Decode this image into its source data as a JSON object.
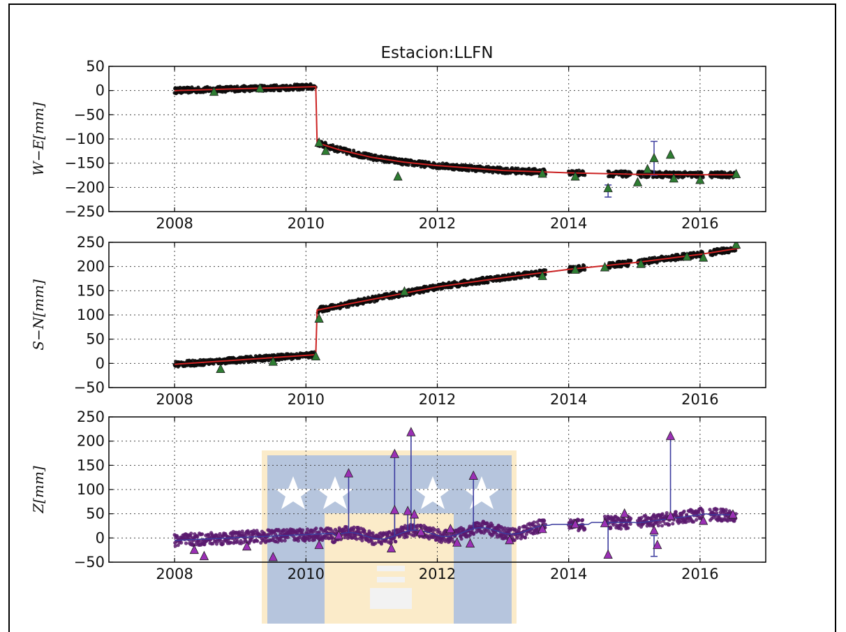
{
  "chart_data": {
    "type": "scatter",
    "title": "Estacion:LLFN",
    "xlim": [
      2007,
      2017
    ],
    "xticks": [
      "2008",
      "2010",
      "2012",
      "2014",
      "2016"
    ],
    "grid": true,
    "colors": {
      "obs": "#0a0a0a",
      "model": "#cc2222",
      "outlier_en": "#2e7d32",
      "outlier_z": "#9b30b5",
      "link": "#3b3b9e",
      "z_points": "#5a1a6e"
    },
    "panels": [
      {
        "id": "we",
        "ylabel": "W−E[mm]",
        "ylim": [
          -250,
          50
        ],
        "yticks": [
          "50",
          "0",
          "−50",
          "−100",
          "−150",
          "−200",
          "−250"
        ],
        "model": [
          [
            2008.0,
            0
          ],
          [
            2010.15,
            8
          ],
          [
            2010.17,
            -108
          ],
          [
            2010.5,
            -122
          ],
          [
            2011.0,
            -138
          ],
          [
            2011.5,
            -148
          ],
          [
            2012.0,
            -155
          ],
          [
            2012.5,
            -160
          ],
          [
            2013.0,
            -165
          ],
          [
            2013.6,
            -168
          ],
          [
            2014.0,
            -170
          ],
          [
            2015.0,
            -173
          ],
          [
            2016.0,
            -174
          ],
          [
            2016.55,
            -174
          ]
        ],
        "segments": [
          [
            2008.0,
            2010.15
          ],
          [
            2010.18,
            2013.65
          ],
          [
            2014.0,
            2014.25
          ],
          [
            2014.6,
            2014.95
          ],
          [
            2015.05,
            2016.05
          ],
          [
            2016.15,
            2016.55
          ]
        ],
        "outliers": [
          [
            2008.6,
            -3
          ],
          [
            2009.3,
            4
          ],
          [
            2010.2,
            -108
          ],
          [
            2010.3,
            -125
          ],
          [
            2011.4,
            -178
          ],
          [
            2013.6,
            -172
          ],
          [
            2014.1,
            -178
          ],
          [
            2014.6,
            -202
          ],
          [
            2015.05,
            -190
          ],
          [
            2015.2,
            -163
          ],
          [
            2015.3,
            -140
          ],
          [
            2015.55,
            -133
          ],
          [
            2015.6,
            -182
          ],
          [
            2016.0,
            -185
          ],
          [
            2016.55,
            -173
          ]
        ],
        "errorbars": [
          [
            2015.3,
            -105,
            -175
          ],
          [
            2014.6,
            -220,
            -195
          ]
        ]
      },
      {
        "id": "sn",
        "ylabel": "S−N[mm]",
        "ylim": [
          -50,
          250
        ],
        "yticks": [
          "250",
          "200",
          "150",
          "100",
          "50",
          "0",
          "−50"
        ],
        "model": [
          [
            2008.0,
            -2
          ],
          [
            2010.15,
            18
          ],
          [
            2010.17,
            110
          ],
          [
            2011.0,
            132
          ],
          [
            2012.0,
            158
          ],
          [
            2013.0,
            177
          ],
          [
            2014.0,
            194
          ],
          [
            2015.0,
            208
          ],
          [
            2016.0,
            225
          ],
          [
            2016.6,
            238
          ]
        ],
        "segments": [
          [
            2008.0,
            2010.15
          ],
          [
            2010.18,
            2013.65
          ],
          [
            2014.0,
            2014.25
          ],
          [
            2014.6,
            2014.95
          ],
          [
            2015.05,
            2016.05
          ],
          [
            2016.15,
            2016.55
          ]
        ],
        "outliers": [
          [
            2008.7,
            -12
          ],
          [
            2009.5,
            3
          ],
          [
            2010.15,
            14
          ],
          [
            2010.2,
            92
          ],
          [
            2011.5,
            148
          ],
          [
            2013.6,
            180
          ],
          [
            2014.1,
            193
          ],
          [
            2014.55,
            198
          ],
          [
            2015.1,
            205
          ],
          [
            2015.8,
            220
          ],
          [
            2016.05,
            218
          ],
          [
            2016.55,
            245
          ]
        ],
        "errorbars": []
      },
      {
        "id": "z",
        "ylabel": "Z[mm]",
        "ylim": [
          -50,
          250
        ],
        "yticks": [
          "250",
          "200",
          "150",
          "100",
          "50",
          "0",
          "−50"
        ],
        "model": [],
        "segments": [
          [
            2008.0,
            2013.65
          ],
          [
            2014.0,
            2014.25
          ],
          [
            2014.55,
            2014.95
          ],
          [
            2015.05,
            2016.05
          ],
          [
            2016.15,
            2016.55
          ]
        ],
        "outliers": [
          [
            2008.3,
            -25
          ],
          [
            2008.45,
            -38
          ],
          [
            2009.1,
            -18
          ],
          [
            2009.5,
            -40
          ],
          [
            2010.2,
            -15
          ],
          [
            2010.5,
            5
          ],
          [
            2011.3,
            -22
          ],
          [
            2011.75,
            12
          ],
          [
            2012.2,
            18
          ],
          [
            2012.3,
            -10
          ],
          [
            2012.5,
            -12
          ],
          [
            2013.1,
            -5
          ],
          [
            2013.6,
            18
          ],
          [
            2014.1,
            28
          ],
          [
            2014.55,
            30
          ],
          [
            2014.85,
            50
          ],
          [
            2015.3,
            15
          ],
          [
            2015.35,
            -15
          ],
          [
            2015.55,
            45
          ],
          [
            2016.05,
            35
          ],
          [
            2016.5,
            48
          ]
        ],
        "spikes": [
          [
            2010.65,
            133
          ],
          [
            2011.35,
            173
          ],
          [
            2011.35,
            57
          ],
          [
            2011.55,
            55
          ],
          [
            2011.6,
            218
          ],
          [
            2011.65,
            48
          ],
          [
            2012.55,
            128
          ],
          [
            2014.6,
            -35
          ],
          [
            2015.55,
            210
          ]
        ],
        "errorbars": [
          [
            2015.3,
            -38,
            5
          ]
        ]
      }
    ]
  }
}
